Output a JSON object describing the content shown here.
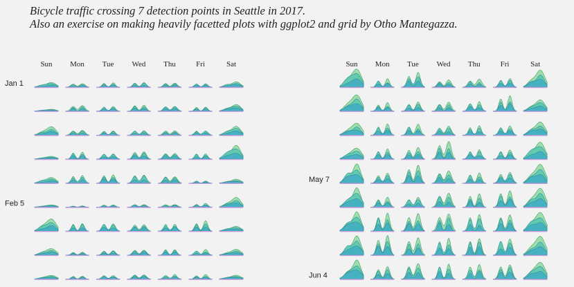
{
  "title": "Bicycle traffic crossing 7 detection points in Seattle in 2017.",
  "subtitle": "Also an exercise on making heavily facetted plots with ggplot2 and grid by Otho Mantegazza.",
  "chart_data": {
    "type": "area",
    "days": [
      "Sun",
      "Mon",
      "Tue",
      "Wed",
      "Thu",
      "Fri",
      "Sat"
    ],
    "row_labels": [
      {
        "panel": 0,
        "row": 0,
        "label": "Jan 1"
      },
      {
        "panel": 0,
        "row": 5,
        "label": "Feb 5"
      },
      {
        "panel": 1,
        "row": 4,
        "label": "May 7"
      },
      {
        "panel": 1,
        "row": 8,
        "label": "Jun 4"
      }
    ],
    "series_colors": [
      "#8fd9a0",
      "#54c4b0",
      "#3aa6c8",
      "#c79de0"
    ],
    "panels": [
      {
        "rows": 9,
        "intensity": [
          [
            0.25,
            0.22,
            0.28,
            0.3,
            0.27,
            0.24,
            0.3
          ],
          [
            0.1,
            0.35,
            0.3,
            0.4,
            0.32,
            0.28,
            0.38
          ],
          [
            0.45,
            0.3,
            0.28,
            0.3,
            0.3,
            0.3,
            0.5
          ],
          [
            0.15,
            0.45,
            0.35,
            0.5,
            0.4,
            0.38,
            0.7
          ],
          [
            0.3,
            0.5,
            0.55,
            0.55,
            0.45,
            0.15,
            0.2
          ],
          [
            0.12,
            0.08,
            0.15,
            0.18,
            0.18,
            0.2,
            0.5
          ],
          [
            0.65,
            0.5,
            0.5,
            0.45,
            0.5,
            0.55,
            0.25
          ],
          [
            0.35,
            0.2,
            0.3,
            0.35,
            0.4,
            0.3,
            0.3
          ],
          [
            0.2,
            0.2,
            0.25,
            0.3,
            0.25,
            0.25,
            0.2
          ]
        ]
      },
      {
        "rows": 9,
        "intensity": [
          [
            1.0,
            0.45,
            0.8,
            0.4,
            0.45,
            0.5,
            0.9
          ],
          [
            0.9,
            0.45,
            0.5,
            0.5,
            0.55,
            0.9,
            0.6
          ],
          [
            0.6,
            0.6,
            0.6,
            0.5,
            0.55,
            0.55,
            0.7
          ],
          [
            0.55,
            0.55,
            0.65,
            1.0,
            0.55,
            0.55,
            0.9
          ],
          [
            1.0,
            0.55,
            1.0,
            0.7,
            0.6,
            0.65,
            1.0
          ],
          [
            1.0,
            0.55,
            0.55,
            0.8,
            0.8,
            1.0,
            1.0
          ],
          [
            1.0,
            1.0,
            1.0,
            1.0,
            1.0,
            1.0,
            1.0
          ],
          [
            1.0,
            1.1,
            1.0,
            1.0,
            1.0,
            1.0,
            1.0
          ],
          [
            1.0,
            0.7,
            0.9,
            0.9,
            0.9,
            0.9,
            0.9
          ]
        ]
      }
    ]
  }
}
